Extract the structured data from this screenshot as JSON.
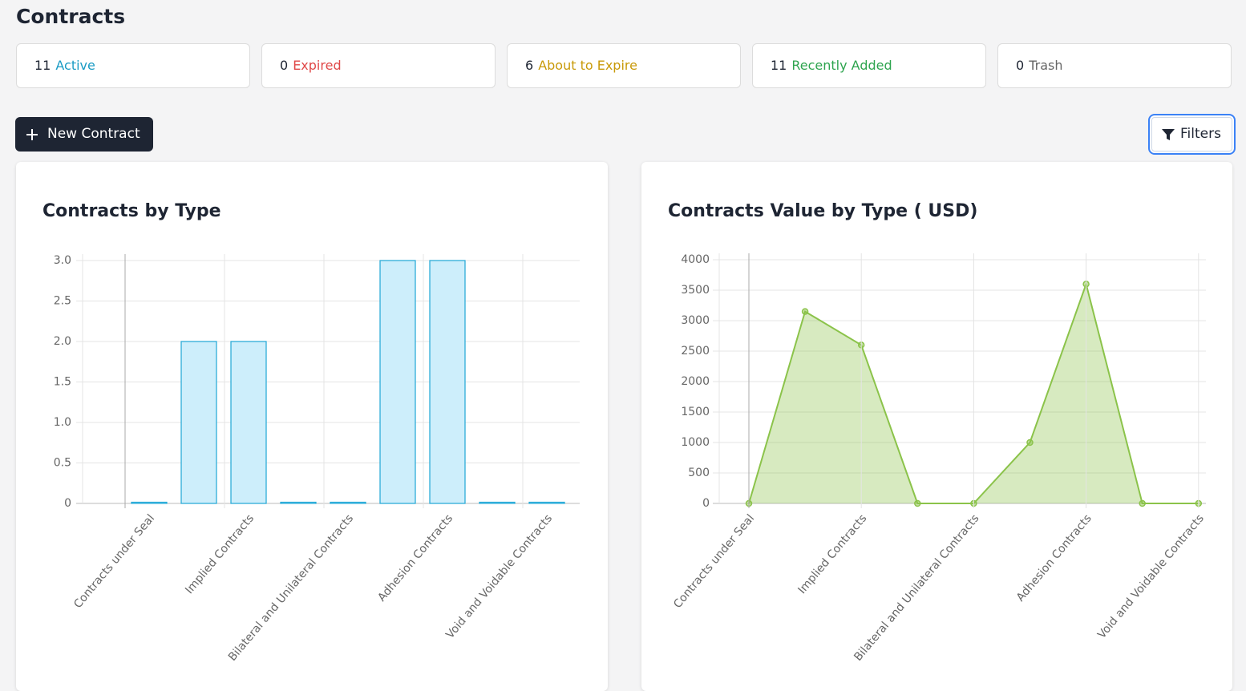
{
  "header": {
    "title": "Contracts"
  },
  "cards": [
    {
      "count": "11",
      "label": "Active",
      "color": "#1a9bc4"
    },
    {
      "count": "0",
      "label": "Expired",
      "color": "#e04848"
    },
    {
      "count": "6",
      "label": "About to Expire",
      "color": "#c99a0a"
    },
    {
      "count": "11",
      "label": "Recently Added",
      "color": "#2ea44f"
    },
    {
      "count": "0",
      "label": "Trash",
      "color": "#666666"
    }
  ],
  "buttons": {
    "new": "New Contract",
    "filters": "Filters"
  },
  "chart_data": [
    {
      "type": "bar",
      "title": "Contracts by Type",
      "categories": [
        "Contracts under Seal",
        null,
        "Implied Contracts",
        null,
        "Bilateral and Unilateral Contracts",
        null,
        "Adhesion Contracts",
        null,
        "Void and Voidable Contracts"
      ],
      "values": [
        0,
        2,
        2,
        0,
        0,
        3,
        3,
        0,
        0
      ],
      "color": "#cdeefb",
      "border_color": "#1ea7d6",
      "ylim": [
        0,
        3
      ],
      "yticks": [
        0,
        0.5,
        {
          "value": 1,
          "label": "1.0"
        },
        1.5,
        {
          "value": 2,
          "label": "2.0"
        },
        2.5,
        {
          "value": 3,
          "label": "3.0"
        }
      ],
      "grid": true
    },
    {
      "type": "area",
      "title": "Contracts Value by Type ( USD)",
      "categories": [
        "Contracts under Seal",
        null,
        "Implied Contracts",
        null,
        "Bilateral and Unilateral Contracts",
        null,
        "Adhesion Contracts",
        null,
        "Void and Voidable Contracts"
      ],
      "values": [
        0,
        3150,
        2600,
        0,
        0,
        1000,
        3600,
        0,
        0
      ],
      "color": "#8bc34a",
      "fill": "rgba(139,195,74,0.35)",
      "ylim": [
        0,
        4000
      ],
      "yticks": [
        0,
        500,
        1000,
        1500,
        2000,
        2500,
        3000,
        3500,
        4000
      ],
      "grid": true
    }
  ]
}
